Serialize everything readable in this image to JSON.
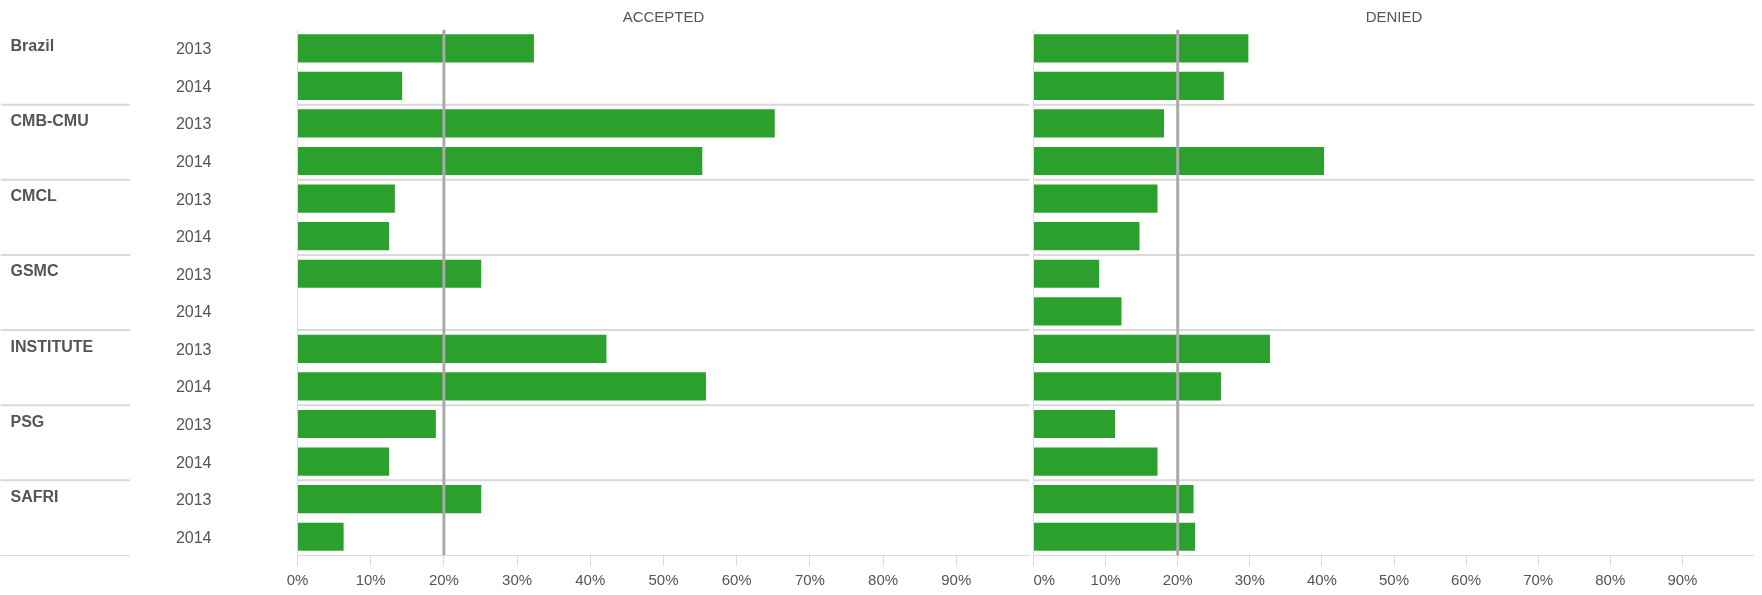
{
  "chart_data": [
    {
      "type": "bar",
      "orientation": "horizontal",
      "title": "ACCEPTED",
      "categories": [
        "2013",
        "2014",
        "2013",
        "2014",
        "2013",
        "2014",
        "2013",
        "2014",
        "2013",
        "2014",
        "2013",
        "2014",
        "2013",
        "2014"
      ],
      "annotations": [
        "Brazil",
        "CMB-CMU",
        "CMCL",
        "GSMC",
        "INSTITUTE",
        "PSG",
        "SAFRI"
      ],
      "values": [
        32.3,
        14.3,
        65.2,
        55.3,
        13.3,
        12.5,
        25.1,
        null,
        42.2,
        55.8,
        18.9,
        12.5,
        25.1,
        6.3
      ],
      "color": "#2ca02c",
      "xlim": [
        0,
        100
      ],
      "xticks": [
        {
          "value": 0,
          "label": "0%"
        },
        {
          "value": 10,
          "label": "10%"
        },
        {
          "value": 20,
          "label": "20%"
        },
        {
          "value": 30,
          "label": "30%"
        },
        {
          "value": 40,
          "label": "40%"
        },
        {
          "value": 50,
          "label": "50%"
        },
        {
          "value": 60,
          "label": "60%"
        },
        {
          "value": 70,
          "label": "70%"
        },
        {
          "value": 80,
          "label": "80%"
        },
        {
          "value": 90,
          "label": "90%"
        }
      ],
      "ref_lines": [
        {
          "axis": "x",
          "value": 20,
          "color": "#aaaaaa"
        }
      ]
    },
    {
      "type": "bar",
      "orientation": "horizontal",
      "title": "DENIED",
      "tick_labels": "x",
      "categories": [
        "2013",
        "2014",
        "2013",
        "2014",
        "2013",
        "2014",
        "2013",
        "2014",
        "2013",
        "2014",
        "2013",
        "2014",
        "2013",
        "2014"
      ],
      "values": [
        29.8,
        26.4,
        18.1,
        40.3,
        17.2,
        14.7,
        9.1,
        12.2,
        32.8,
        26.0,
        11.3,
        17.2,
        22.2,
        22.4
      ],
      "color": "#2ca02c",
      "xlim": [
        0,
        100
      ],
      "xticks": [
        {
          "value": 0,
          "label": "0%"
        },
        {
          "value": 10,
          "label": "10%"
        },
        {
          "value": 20,
          "label": "20%"
        },
        {
          "value": 30,
          "label": "30%"
        },
        {
          "value": 40,
          "label": "40%"
        },
        {
          "value": 50,
          "label": "50%"
        },
        {
          "value": 60,
          "label": "60%"
        },
        {
          "value": 70,
          "label": "70%"
        },
        {
          "value": 80,
          "label": "80%"
        },
        {
          "value": 90,
          "label": "90%"
        }
      ],
      "ref_lines": [
        {
          "axis": "x",
          "value": 20,
          "color": "#aaaaaa"
        }
      ]
    }
  ]
}
